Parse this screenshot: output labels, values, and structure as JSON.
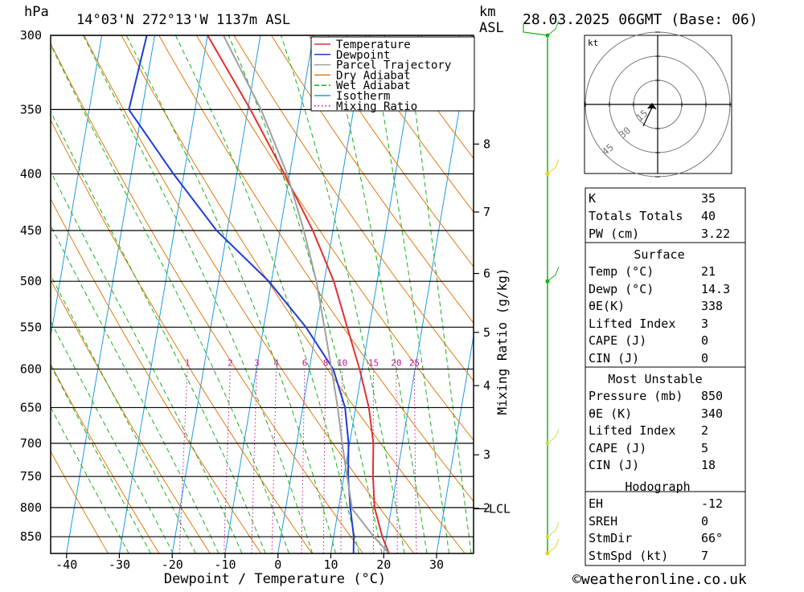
{
  "header": {
    "units_hpa": "hPa",
    "location": "14°03'N  272°13'W  1137m  ASL",
    "km": "km",
    "asl": "ASL",
    "datetime": "28.03.2025  06GMT  (Base: 06)"
  },
  "chart_data": {
    "type": "line",
    "title": "14°03'N  272°13'W  1137m  ASL",
    "xlabel": "Dewpoint / Temperature (°C)",
    "ylabel": "hPa",
    "y_scale": "log",
    "x_ticks": [
      -40,
      -30,
      -20,
      -10,
      0,
      10,
      20,
      30
    ],
    "xlim": [
      -43,
      37
    ],
    "pressure_ticks": [
      300,
      350,
      400,
      450,
      500,
      550,
      600,
      650,
      700,
      750,
      800,
      850
    ],
    "ylim": [
      880,
      300
    ],
    "skew_deg_per_decade": 35.7,
    "km_ticks": [
      {
        "label": "8",
        "p": 376
      },
      {
        "label": "7",
        "p": 433
      },
      {
        "label": "6",
        "p": 492
      },
      {
        "label": "5",
        "p": 556
      },
      {
        "label": "4",
        "p": 621
      },
      {
        "label": "3",
        "p": 717
      },
      {
        "label": "2",
        "p": 801
      }
    ],
    "lcl": {
      "label": "LCL",
      "p": 802
    },
    "right_axis_label": "Mixing Ratio (g/kg)",
    "mixing_ratio_labels": [
      "1",
      "2",
      "3",
      "4",
      "6",
      "8",
      "10",
      "15",
      "20",
      "25"
    ],
    "mixing_ratio_values": [
      1,
      2,
      3,
      4,
      6,
      8,
      10,
      15,
      20,
      25
    ],
    "legend": [
      {
        "name": "Temperature",
        "color": "#e03030"
      },
      {
        "name": "Dewpoint",
        "color": "#1f3ad6"
      },
      {
        "name": "Parcel Trajectory",
        "color": "#a0a0a0"
      },
      {
        "name": "Dry Adiabat",
        "color": "#e07a10"
      },
      {
        "name": "Wet Adiabat",
        "color": "#18b018"
      },
      {
        "name": "Isotherm",
        "color": "#1c9be0"
      },
      {
        "name": "Mixing Ratio",
        "color": "#c0139a"
      }
    ],
    "series": [
      {
        "name": "Temperature",
        "color": "#e03030",
        "points": [
          {
            "p": 880,
            "t": 21
          },
          {
            "p": 850,
            "t": 19.2
          },
          {
            "p": 800,
            "t": 16.8
          },
          {
            "p": 750,
            "t": 15.5
          },
          {
            "p": 700,
            "t": 14.5
          },
          {
            "p": 650,
            "t": 12.5
          },
          {
            "p": 600,
            "t": 9.5
          },
          {
            "p": 550,
            "t": 5.8
          },
          {
            "p": 500,
            "t": 1.8
          },
          {
            "p": 450,
            "t": -3.8
          },
          {
            "p": 400,
            "t": -11
          },
          {
            "p": 350,
            "t": -19.5
          },
          {
            "p": 300,
            "t": -30
          }
        ]
      },
      {
        "name": "Dewpoint",
        "color": "#1f3ad6",
        "points": [
          {
            "p": 880,
            "t": 14.3
          },
          {
            "p": 850,
            "t": 13.8
          },
          {
            "p": 800,
            "t": 12.2
          },
          {
            "p": 750,
            "t": 10.8
          },
          {
            "p": 700,
            "t": 9.8
          },
          {
            "p": 650,
            "t": 8
          },
          {
            "p": 600,
            "t": 4.5
          },
          {
            "p": 550,
            "t": -2
          },
          {
            "p": 500,
            "t": -10.5
          },
          {
            "p": 450,
            "t": -22
          },
          {
            "p": 400,
            "t": -32
          },
          {
            "p": 350,
            "t": -42.5
          },
          {
            "p": 300,
            "t": -41.5
          }
        ]
      },
      {
        "name": "Parcel Trajectory",
        "color": "#a0a0a0",
        "points": [
          {
            "p": 880,
            "t": 21
          },
          {
            "p": 850,
            "t": 17.6
          },
          {
            "p": 802,
            "t": 12.6
          },
          {
            "p": 750,
            "t": 10.6
          },
          {
            "p": 700,
            "t": 8.6
          },
          {
            "p": 650,
            "t": 6.6
          },
          {
            "p": 600,
            "t": 4.2
          },
          {
            "p": 550,
            "t": 1.5
          },
          {
            "p": 500,
            "t": -1.5
          },
          {
            "p": 450,
            "t": -5.5
          },
          {
            "p": 400,
            "t": -10.5
          },
          {
            "p": 350,
            "t": -17.5
          },
          {
            "p": 300,
            "t": -27
          }
        ]
      }
    ],
    "wind_barbs": [
      {
        "p": 300,
        "color": "#18b018"
      },
      {
        "p": 400,
        "color": "#e8d020"
      },
      {
        "p": 500,
        "color": "#18b018"
      },
      {
        "p": 700,
        "color": "#c8e050"
      },
      {
        "p": 850,
        "color": "#c8e050"
      },
      {
        "p": 880,
        "color": "#e8d020"
      }
    ],
    "hodograph": {
      "units": "kt",
      "ring_labels": [
        "15",
        "30",
        "45"
      ],
      "ring_values": [
        15,
        30,
        45
      ]
    }
  },
  "indices": {
    "k_label": "K",
    "k_value": "35",
    "tt_label": "Totals Totals",
    "tt_value": "40",
    "pw_label": "PW (cm)",
    "pw_value": "3.22",
    "surface": {
      "title": "Surface",
      "temp_label": "Temp (°C)",
      "temp_value": "21",
      "dewp_label": "Dewp (°C)",
      "dewp_value": "14.3",
      "theta_label": "θE(K)",
      "theta_value": "338",
      "li_label": "Lifted Index",
      "li_value": "3",
      "cape_label": "CAPE (J)",
      "cape_value": "0",
      "cin_label": "CIN (J)",
      "cin_value": "0"
    },
    "most_unstable": {
      "title": "Most Unstable",
      "pres_label": "Pressure (mb)",
      "pres_value": "850",
      "theta_label": "θE (K)",
      "theta_value": "340",
      "li_label": "Lifted Index",
      "li_value": "2",
      "cape_label": "CAPE (J)",
      "cape_value": "5",
      "cin_label": "CIN (J)",
      "cin_value": "18"
    },
    "hodograph_box": {
      "title": "Hodograph",
      "eh_label": "EH",
      "eh_value": "-12",
      "sreh_label": "SREH",
      "sreh_value": "0",
      "stmdir_label": "StmDir",
      "stmdir_value": "66°",
      "stmspd_label": "StmSpd (kt)",
      "stmspd_value": "7"
    }
  },
  "footer": {
    "copyright": "©weatheronline.co.uk"
  }
}
